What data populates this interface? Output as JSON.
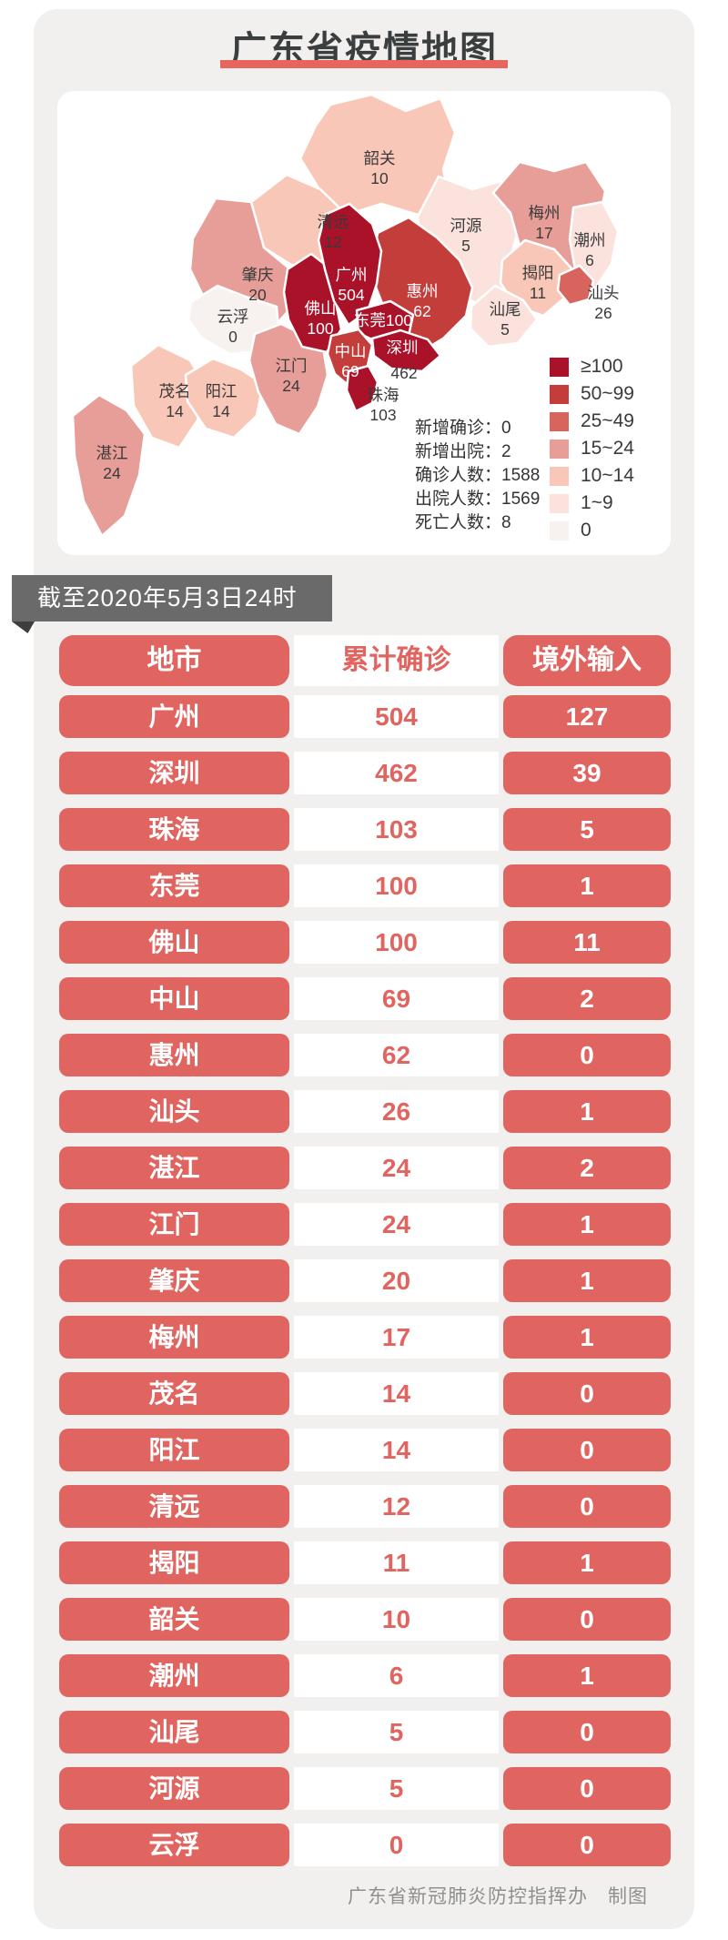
{
  "title": "广东省疫情地图",
  "banner": "截至2020年5月3日24时",
  "footer": "广东省新冠肺炎防控指挥办　制图",
  "colors": {
    "accent_red": "#e0645f",
    "title_underline": "#e8655e",
    "banner_bg": "#6a6a6a",
    "banner_fold": "#3e3e3e",
    "card_bg": "#f1f0ef",
    "map_card_bg": "#ffffff",
    "map_label_dark": "#3a3a3a",
    "map_label_light": "#ffffff"
  },
  "map_panel": {
    "legend": [
      {
        "label": "≥100",
        "color": "#a91229"
      },
      {
        "label": "50~99",
        "color": "#c33d3b"
      },
      {
        "label": "25~49",
        "color": "#d7655e"
      },
      {
        "label": "15~24",
        "color": "#e79d98"
      },
      {
        "label": "10~14",
        "color": "#f9c7b8"
      },
      {
        "label": "1~9",
        "color": "#fce2dc"
      },
      {
        "label": "0",
        "color": "#f7f2ef"
      }
    ],
    "stats": [
      {
        "label": "新增确诊",
        "value": "0"
      },
      {
        "label": "新增出院",
        "value": "2"
      },
      {
        "label": "确诊人数",
        "value": "1588"
      },
      {
        "label": "出院人数",
        "value": "1569"
      },
      {
        "label": "死亡人数",
        "value": "8"
      }
    ],
    "regions": [
      {
        "name": "韶关",
        "cases": 10
      },
      {
        "name": "清远",
        "cases": 12
      },
      {
        "name": "肇庆",
        "cases": 20
      },
      {
        "name": "河源",
        "cases": 5
      },
      {
        "name": "梅州",
        "cases": 17
      },
      {
        "name": "潮州",
        "cases": 6
      },
      {
        "name": "揭阳",
        "cases": 11
      },
      {
        "name": "汕尾",
        "cases": 5
      },
      {
        "name": "云浮",
        "cases": 0
      },
      {
        "name": "茂名",
        "cases": 14
      },
      {
        "name": "阳江",
        "cases": 14
      },
      {
        "name": "湛江",
        "cases": 24
      },
      {
        "name": "江门",
        "cases": 24
      },
      {
        "name": "惠州",
        "cases": 62
      },
      {
        "name": "佛山",
        "cases": 100
      },
      {
        "name": "广州",
        "cases": 504
      },
      {
        "name": "东莞",
        "cases": 100
      },
      {
        "name": "中山",
        "cases": 69
      },
      {
        "name": "深圳",
        "cases": 462
      },
      {
        "name": "珠海",
        "cases": 103
      },
      {
        "name": "汕头",
        "cases": 26
      }
    ]
  },
  "table": {
    "headers": [
      "地市",
      "累计确诊",
      "境外输入"
    ],
    "rows": [
      [
        "广州",
        "504",
        "127"
      ],
      [
        "深圳",
        "462",
        "39"
      ],
      [
        "珠海",
        "103",
        "5"
      ],
      [
        "东莞",
        "100",
        "1"
      ],
      [
        "佛山",
        "100",
        "11"
      ],
      [
        "中山",
        "69",
        "2"
      ],
      [
        "惠州",
        "62",
        "0"
      ],
      [
        "汕头",
        "26",
        "1"
      ],
      [
        "湛江",
        "24",
        "2"
      ],
      [
        "江门",
        "24",
        "1"
      ],
      [
        "肇庆",
        "20",
        "1"
      ],
      [
        "梅州",
        "17",
        "1"
      ],
      [
        "茂名",
        "14",
        "0"
      ],
      [
        "阳江",
        "14",
        "0"
      ],
      [
        "清远",
        "12",
        "0"
      ],
      [
        "揭阳",
        "11",
        "1"
      ],
      [
        "韶关",
        "10",
        "0"
      ],
      [
        "潮州",
        "6",
        "1"
      ],
      [
        "汕尾",
        "5",
        "0"
      ],
      [
        "河源",
        "5",
        "0"
      ],
      [
        "云浮",
        "0",
        "0"
      ]
    ]
  },
  "chart_data": {
    "type": "heatmap",
    "subtype": "choropleth-map-with-table",
    "title": "广东省疫情地图",
    "as_of": "截至2020年5月3日24时",
    "categories": [
      "广州",
      "深圳",
      "珠海",
      "东莞",
      "佛山",
      "中山",
      "惠州",
      "汕头",
      "湛江",
      "江门",
      "肇庆",
      "梅州",
      "茂名",
      "阳江",
      "清远",
      "揭阳",
      "韶关",
      "潮州",
      "汕尾",
      "河源",
      "云浮"
    ],
    "series": [
      {
        "name": "累计确诊",
        "values": [
          504,
          462,
          103,
          100,
          100,
          69,
          62,
          26,
          24,
          24,
          20,
          17,
          14,
          14,
          12,
          11,
          10,
          6,
          5,
          5,
          0
        ]
      },
      {
        "name": "境外输入",
        "values": [
          127,
          39,
          5,
          1,
          11,
          2,
          0,
          1,
          2,
          1,
          1,
          1,
          0,
          0,
          0,
          1,
          0,
          1,
          0,
          0,
          0
        ]
      }
    ],
    "legend_bins": [
      "≥100",
      "50~99",
      "25~49",
      "15~24",
      "10~14",
      "1~9",
      "0"
    ],
    "legend_position": "right",
    "summary": {
      "新增确诊": 0,
      "新增出院": 2,
      "确诊人数": 1588,
      "出院人数": 1569,
      "死亡人数": 8
    }
  }
}
